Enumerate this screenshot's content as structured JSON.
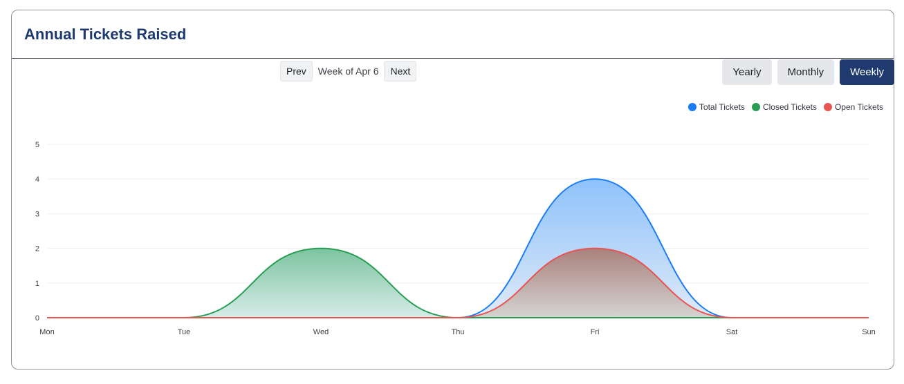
{
  "card": {
    "title": "Annual Tickets Raised"
  },
  "nav": {
    "prev_label": "Prev",
    "week_label": "Week of Apr 6",
    "next_label": "Next"
  },
  "range_buttons": [
    {
      "label": "Yearly",
      "active": false
    },
    {
      "label": "Monthly",
      "active": false
    },
    {
      "label": "Weekly",
      "active": true
    }
  ],
  "colors": {
    "total": "#1a7cf5",
    "closed": "#2a9d54",
    "open": "#e85454",
    "accent": "#1e3a6e"
  },
  "chart_data": {
    "type": "area",
    "title": "Annual Tickets Raised",
    "xlabel": "",
    "ylabel": "",
    "categories": [
      "Mon",
      "Tue",
      "Wed",
      "Thu",
      "Fri",
      "Sat",
      "Sun"
    ],
    "ylim": [
      0,
      5
    ],
    "yticks": [
      0,
      1,
      2,
      3,
      4,
      5
    ],
    "grid": true,
    "legend_position": "top-right",
    "series": [
      {
        "name": "Total Tickets",
        "values": [
          0,
          0,
          0,
          0,
          4,
          0,
          0
        ]
      },
      {
        "name": "Closed Tickets",
        "values": [
          0,
          0,
          2,
          0,
          0,
          0,
          0
        ]
      },
      {
        "name": "Open Tickets",
        "values": [
          0,
          0,
          0,
          0,
          2,
          0,
          0
        ]
      }
    ]
  }
}
